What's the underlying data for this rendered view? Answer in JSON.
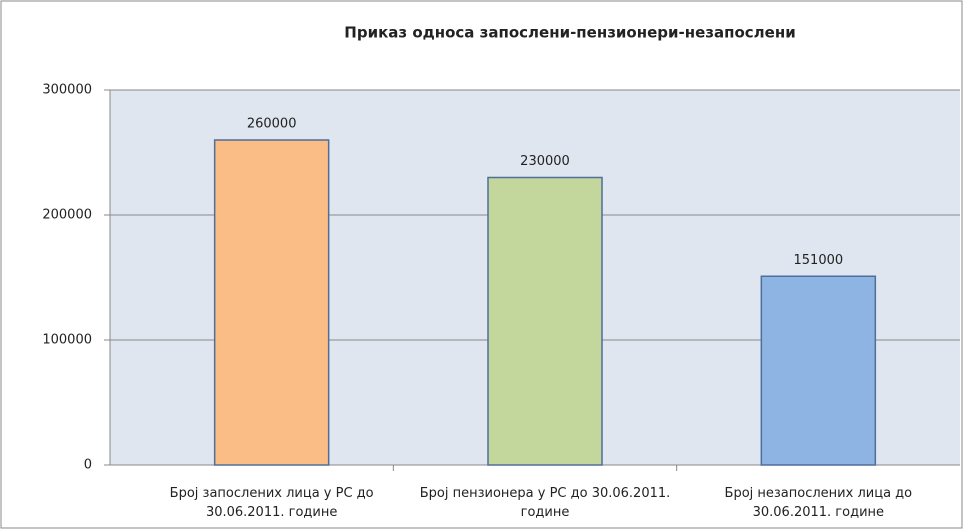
{
  "chart_data": {
    "type": "bar",
    "title": "Приказ односа запослени-пензионери-незапослени",
    "categories": [
      "Број запослених лица у РС до 30.06.2011. године",
      "Број пензионера у РС до 30.06.2011. године",
      "Број незапослених лица до 30.06.2011. године"
    ],
    "values": [
      260000,
      230000,
      151000
    ],
    "colors": [
      "#f9bd85",
      "#c3d69b",
      "#8eb4e3"
    ],
    "ylim": [
      0,
      300000
    ],
    "yticks": [
      0,
      100000,
      200000,
      300000
    ],
    "grid": true
  }
}
